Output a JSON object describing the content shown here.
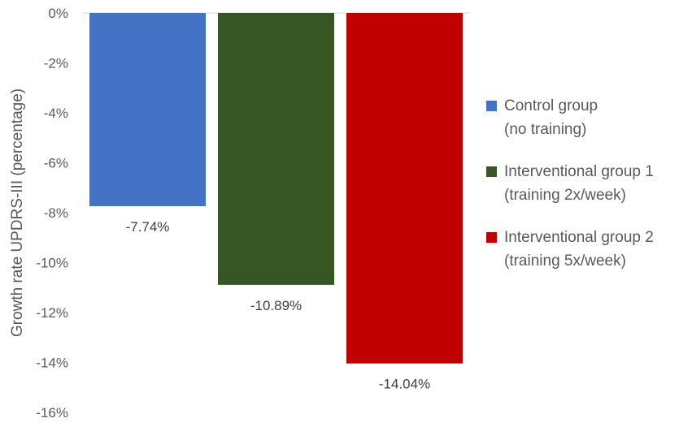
{
  "chart_data": {
    "type": "bar",
    "categories": [
      "Control group (no training)",
      "Interventional group 1 (training 2x/week)",
      "Interventional group 2 (training 5x/week)"
    ],
    "values": [
      -7.74,
      -10.89,
      -14.04
    ],
    "data_labels": [
      "-7.74%",
      "-10.89%",
      "-14.04%"
    ],
    "colors": [
      "#4472C4",
      "#375623",
      "#C00000"
    ],
    "ylabel": "Growth rate UPDRS-III (percentage)",
    "ylim": [
      -16,
      0
    ],
    "y_ticks": [
      0,
      -2,
      -4,
      -6,
      -8,
      -10,
      -12,
      -14,
      -16
    ],
    "y_tick_labels": [
      "0%",
      "-2%",
      "-4%",
      "-6%",
      "-8%",
      "-10%",
      "-12%",
      "-14%",
      "-16%"
    ],
    "grid": false,
    "legend_position": "right",
    "legend": [
      {
        "line1": "Control group",
        "line2": "(no training)",
        "color": "#4472C4"
      },
      {
        "line1": "Interventional group 1",
        "line2": "(training 2x/week)",
        "color": "#375623"
      },
      {
        "line1": "Interventional group 2",
        "line2": "(training 5x/week)",
        "color": "#C00000"
      }
    ]
  }
}
